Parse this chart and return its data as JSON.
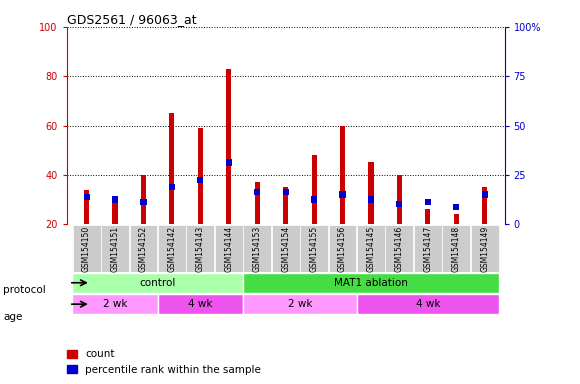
{
  "title": "GDS2561 / 96063_at",
  "samples": [
    "GSM154150",
    "GSM154151",
    "GSM154152",
    "GSM154142",
    "GSM154143",
    "GSM154144",
    "GSM154153",
    "GSM154154",
    "GSM154155",
    "GSM154156",
    "GSM154145",
    "GSM154146",
    "GSM154147",
    "GSM154148",
    "GSM154149"
  ],
  "red_values": [
    34,
    29,
    40,
    65,
    59,
    83,
    37,
    35,
    48,
    60,
    45,
    40,
    26,
    24,
    35
  ],
  "blue_values": [
    31,
    30,
    29,
    35,
    38,
    45,
    33,
    33,
    30,
    32,
    30,
    28,
    29,
    27,
    32
  ],
  "ylim_left": [
    20,
    100
  ],
  "ylim_right": [
    0,
    100
  ],
  "yticks_left": [
    20,
    40,
    60,
    80,
    100
  ],
  "ytick_labels_right": [
    "0",
    "25",
    "50",
    "75",
    "100%"
  ],
  "protocol_groups": [
    {
      "label": "control",
      "start": 0,
      "end": 5,
      "color": "#AAFFAA"
    },
    {
      "label": "MAT1 ablation",
      "start": 6,
      "end": 14,
      "color": "#44DD44"
    }
  ],
  "age_groups": [
    {
      "label": "2 wk",
      "start": 0,
      "end": 2,
      "color": "#FF99FF"
    },
    {
      "label": "4 wk",
      "start": 3,
      "end": 5,
      "color": "#EE55EE"
    },
    {
      "label": "2 wk",
      "start": 6,
      "end": 9,
      "color": "#FF99FF"
    },
    {
      "label": "4 wk",
      "start": 10,
      "end": 14,
      "color": "#EE55EE"
    }
  ],
  "red_color": "#CC0000",
  "blue_color": "#0000CC",
  "bar_bg_color": "#CCCCCC",
  "left_axis_color": "#CC0000",
  "right_axis_color": "#0000CC",
  "legend_red": "count",
  "legend_blue": "percentile rank within the sample",
  "protocol_label": "protocol",
  "age_label": "age"
}
